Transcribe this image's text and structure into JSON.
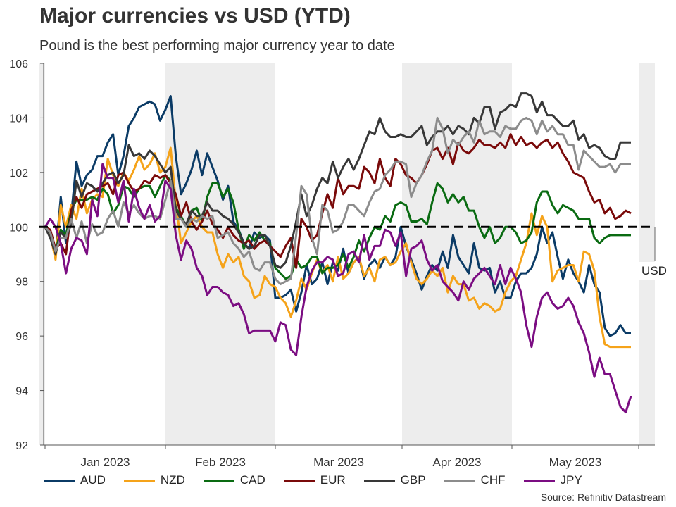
{
  "title": "Major currencies vs USD (YTD)",
  "subtitle": "Pound is the best performing major currency year to date",
  "source": "Source: Refinitiv Datastream",
  "chart_data": {
    "type": "line",
    "ylim": [
      92,
      106
    ],
    "yticks": [
      92,
      94,
      96,
      98,
      100,
      102,
      104,
      106
    ],
    "xticks": [
      "Jan 2023",
      "Feb 2023",
      "Mar 2023",
      "Apr 2023",
      "May 2023"
    ],
    "reference_line": {
      "value": 100,
      "label": "USD"
    },
    "series": [
      {
        "name": "AUD",
        "color": "#0b3b66",
        "values": [
          100.0,
          99.8,
          98.9,
          101.1,
          99.4,
          100.4,
          102.4,
          101.5,
          101.9,
          102.1,
          102.6,
          102.6,
          103.1,
          103.4,
          101.9,
          102.6,
          103.7,
          104.0,
          104.4,
          104.5,
          104.6,
          104.5,
          103.9,
          104.3,
          104.8,
          102.6,
          101.2,
          101.6,
          102.1,
          102.8,
          101.9,
          102.7,
          102.2,
          101.7,
          101.0,
          101.5,
          100.2,
          99.9,
          99.4,
          99.2,
          99.8,
          99.6,
          99.7,
          99.5,
          97.4,
          97.4,
          97.5,
          97.7,
          96.9,
          97.6,
          98.6,
          97.9,
          98.1,
          98.7,
          97.9,
          98.7,
          98.4,
          99.2,
          98.3,
          98.7,
          98.9,
          98.1,
          98.6,
          98.8,
          98.5,
          98.9,
          98.6,
          98.9,
          100.0,
          99.3,
          98.8,
          98.3,
          97.7,
          98.2,
          98.6,
          98.4,
          99.1,
          98.5,
          99.7,
          98.9,
          98.6,
          98.3,
          99.4,
          98.5,
          98.4,
          98.5,
          97.6,
          98.0,
          97.4,
          97.4,
          98.0,
          98.3,
          98.3,
          98.5,
          99.0,
          100.0,
          99.4,
          99.8,
          98.9,
          98.1,
          98.8,
          98.3,
          98.0,
          97.6,
          98.6,
          97.9,
          97.6,
          96.3,
          96.0,
          96.1,
          96.4,
          96.1,
          96.1
        ]
      },
      {
        "name": "NZD",
        "color": "#f5a31a",
        "values": [
          100.0,
          99.7,
          98.8,
          100.8,
          100.0,
          100.8,
          100.3,
          101.4,
          100.5,
          101.0,
          101.2,
          101.1,
          102.5,
          101.9,
          101.5,
          102.0,
          101.7,
          102.1,
          102.6,
          102.1,
          102.3,
          102.7,
          102.0,
          102.2,
          102.9,
          100.9,
          99.4,
          99.8,
          100.2,
          100.4,
          100.0,
          99.8,
          99.8,
          99.0,
          98.5,
          99.0,
          98.7,
          98.9,
          98.2,
          98.0,
          97.4,
          97.5,
          98.2,
          97.9,
          97.8,
          97.4,
          97.2,
          96.7,
          97.3,
          98.1,
          97.7,
          98.3,
          98.8,
          98.3,
          98.6,
          98.0,
          98.9,
          98.1,
          98.3,
          98.7,
          98.9,
          98.2,
          98.5,
          98.0,
          98.8,
          98.9,
          98.6,
          98.7,
          99.1,
          99.4,
          98.7,
          98.1,
          97.9,
          98.1,
          98.4,
          98.2,
          98.5,
          97.6,
          98.2,
          97.9,
          97.9,
          97.3,
          97.4,
          97.0,
          97.2,
          97.1,
          96.9,
          97.0,
          97.6,
          98.0,
          98.2,
          98.8,
          99.4,
          100.5,
          99.7,
          100.4,
          100.0,
          98.0,
          98.4,
          98.5,
          98.6,
          98.6,
          98.0,
          99.1,
          99.0,
          98.4,
          96.7,
          95.7,
          95.6,
          95.6,
          95.6,
          95.6,
          95.6
        ]
      },
      {
        "name": "CAD",
        "color": "#0a6b12",
        "values": [
          100.0,
          99.8,
          99.1,
          99.9,
          99.7,
          100.6,
          101.0,
          101.0,
          101.0,
          101.1,
          101.0,
          101.4,
          101.2,
          100.5,
          100.8,
          101.5,
          101.4,
          101.1,
          101.4,
          101.5,
          101.5,
          101.1,
          101.5,
          101.9,
          101.7,
          100.7,
          100.4,
          100.0,
          100.6,
          100.7,
          100.2,
          101.1,
          101.6,
          101.6,
          101.1,
          101.4,
          100.9,
          99.9,
          99.2,
          99.7,
          99.5,
          99.8,
          99.5,
          99.4,
          98.5,
          98.3,
          98.1,
          98.2,
          98.8,
          98.5,
          98.6,
          98.9,
          98.9,
          98.3,
          98.5,
          98.5,
          98.6,
          99.0,
          98.5,
          98.9,
          99.5,
          99.1,
          99.6,
          100.0,
          99.9,
          100.4,
          100.2,
          100.8,
          100.9,
          100.8,
          100.2,
          100.2,
          100.3,
          100.1,
          100.9,
          101.6,
          101.4,
          100.9,
          101.2,
          100.9,
          101.1,
          100.6,
          100.6,
          100.0,
          99.6,
          100.0,
          99.4,
          99.6,
          100.0,
          100.0,
          99.8,
          99.4,
          99.5,
          99.8,
          100.9,
          101.3,
          101.3,
          100.8,
          100.5,
          100.8,
          100.7,
          100.6,
          100.3,
          100.3,
          100.3,
          99.6,
          99.4,
          99.6,
          99.7,
          99.7,
          99.7,
          99.7,
          99.7
        ]
      },
      {
        "name": "EUR",
        "color": "#7a0a0a",
        "values": [
          100.0,
          99.9,
          99.2,
          99.4,
          99.0,
          100.6,
          101.1,
          100.7,
          101.2,
          101.3,
          101.4,
          101.5,
          101.6,
          101.2,
          101.9,
          102.0,
          101.6,
          101.3,
          101.4,
          101.7,
          101.6,
          101.9,
          101.8,
          101.9,
          101.6,
          101.2,
          100.4,
          100.9,
          100.2,
          99.9,
          100.2,
          100.6,
          100.1,
          99.9,
          99.6,
          100.0,
          99.7,
          99.5,
          99.4,
          99.5,
          99.2,
          99.4,
          99.5,
          99.3,
          99.1,
          98.9,
          99.3,
          99.6,
          98.5,
          100.3,
          100.0,
          99.5,
          99.7,
          100.5,
          101.2,
          100.7,
          101.8,
          101.2,
          101.5,
          101.5,
          101.4,
          102.2,
          102.0,
          101.6,
          102.5,
          101.8,
          101.5,
          102.5,
          102.3,
          101.9,
          101.8,
          101.6,
          101.9,
          102.3,
          102.8,
          102.9,
          102.5,
          102.9,
          102.3,
          103.1,
          102.8,
          102.7,
          102.9,
          103.2,
          103.0,
          103.0,
          102.9,
          103.1,
          102.9,
          103.4,
          103.0,
          103.3,
          103.0,
          103.1,
          102.9,
          103.1,
          103.2,
          102.9,
          103.1,
          102.7,
          102.4,
          102.0,
          101.9,
          101.8,
          101.3,
          100.9,
          101.0,
          100.5,
          100.7,
          100.3,
          100.4,
          100.6,
          100.5
        ]
      },
      {
        "name": "GBP",
        "color": "#383838",
        "values": [
          100.0,
          99.6,
          99.0,
          99.8,
          99.6,
          100.1,
          101.7,
          101.1,
          101.6,
          101.5,
          101.3,
          101.6,
          101.9,
          102.0,
          101.6,
          101.9,
          103.0,
          102.6,
          102.7,
          102.5,
          102.8,
          102.6,
          102.3,
          102.0,
          102.2,
          100.6,
          100.3,
          100.1,
          100.6,
          100.4,
          100.4,
          100.9,
          100.6,
          100.6,
          100.4,
          100.3,
          100.1,
          99.8,
          99.4,
          99.2,
          99.3,
          99.7,
          99.7,
          99.3,
          98.6,
          98.5,
          98.7,
          99.3,
          100.2,
          101.2,
          100.4,
          100.8,
          101.4,
          101.8,
          101.6,
          102.4,
          101.8,
          102.2,
          102.5,
          102.1,
          102.5,
          103.0,
          103.5,
          103.4,
          104.0,
          103.5,
          103.3,
          103.3,
          103.4,
          103.3,
          103.3,
          103.5,
          103.7,
          103.0,
          103.3,
          103.5,
          103.5,
          103.7,
          103.4,
          103.7,
          103.6,
          103.4,
          104.0,
          103.8,
          104.4,
          104.4,
          103.6,
          104.2,
          104.3,
          104.5,
          104.4,
          104.9,
          104.9,
          104.8,
          104.2,
          104.6,
          104.1,
          104.1,
          103.9,
          103.7,
          103.7,
          103.9,
          103.2,
          103.4,
          102.9,
          103.0,
          102.9,
          102.6,
          102.5,
          102.5,
          103.1,
          103.1,
          103.1
        ]
      },
      {
        "name": "CHF",
        "color": "#8c8c8c",
        "values": [
          100.0,
          99.8,
          99.1,
          99.6,
          99.6,
          100.3,
          99.6,
          100.2,
          99.4,
          100.1,
          99.7,
          99.8,
          100.3,
          100.6,
          100.0,
          100.9,
          100.5,
          100.8,
          100.5,
          100.3,
          100.4,
          100.4,
          100.3,
          101.0,
          101.7,
          100.3,
          100.3,
          100.0,
          100.3,
          100.2,
          100.4,
          100.3,
          100.4,
          99.6,
          99.7,
          99.8,
          99.4,
          99.2,
          98.9,
          99.1,
          98.5,
          98.4,
          98.7,
          98.7,
          98.1,
          97.9,
          98.0,
          98.1,
          99.7,
          101.5,
          101.2,
          99.6,
          99.0,
          100.8,
          100.6,
          99.8,
          99.9,
          100.2,
          100.8,
          100.8,
          100.6,
          100.4,
          100.9,
          101.3,
          101.4,
          101.9,
          102.1,
          102.4,
          102.4,
          102.3,
          101.1,
          101.6,
          101.9,
          102.4,
          102.8,
          104.0,
          103.6,
          102.7,
          103.2,
          103.0,
          103.3,
          103.5,
          103.1,
          103.9,
          103.4,
          103.5,
          103.5,
          103.3,
          103.7,
          103.6,
          103.6,
          103.9,
          104.0,
          103.9,
          103.4,
          103.9,
          103.5,
          103.7,
          103.4,
          103.4,
          103.0,
          103.0,
          102.1,
          102.8,
          102.6,
          102.4,
          102.2,
          102.2,
          102.3,
          102.0,
          102.3,
          102.3,
          102.3
        ]
      },
      {
        "name": "JPY",
        "color": "#7b0d82",
        "values": [
          100.0,
          100.3,
          100.0,
          99.4,
          98.3,
          99.2,
          99.6,
          99.5,
          99.0,
          101.0,
          100.4,
          102.3,
          101.8,
          101.8,
          100.9,
          101.7,
          100.2,
          101.4,
          100.7,
          100.3,
          100.8,
          100.2,
          100.4,
          101.7,
          101.4,
          99.7,
          98.8,
          99.5,
          99.2,
          98.5,
          98.2,
          97.5,
          97.8,
          97.8,
          97.6,
          97.5,
          97.1,
          97.2,
          96.8,
          96.1,
          96.2,
          96.2,
          96.2,
          96.2,
          95.8,
          96.5,
          96.4,
          95.5,
          95.3,
          96.7,
          97.8,
          98.4,
          98.7,
          98.7,
          98.9,
          98.8,
          98.2,
          98.3,
          99.0,
          99.1,
          98.7,
          99.7,
          98.8,
          99.3,
          99.3,
          99.9,
          99.8,
          99.3,
          99.8,
          98.2,
          99.2,
          99.3,
          99.5,
          98.8,
          98.4,
          98.6,
          98.0,
          97.8,
          97.6,
          97.3,
          98.0,
          97.7,
          98.1,
          98.3,
          98.5,
          98.2,
          97.9,
          98.6,
          97.9,
          98.5,
          98.1,
          97.6,
          96.4,
          95.6,
          96.7,
          97.4,
          97.6,
          97.2,
          97.0,
          97.1,
          97.4,
          97.1,
          96.5,
          96.1,
          95.4,
          94.5,
          95.2,
          94.6,
          94.6,
          94.0,
          93.4,
          93.2,
          93.8
        ]
      }
    ]
  }
}
